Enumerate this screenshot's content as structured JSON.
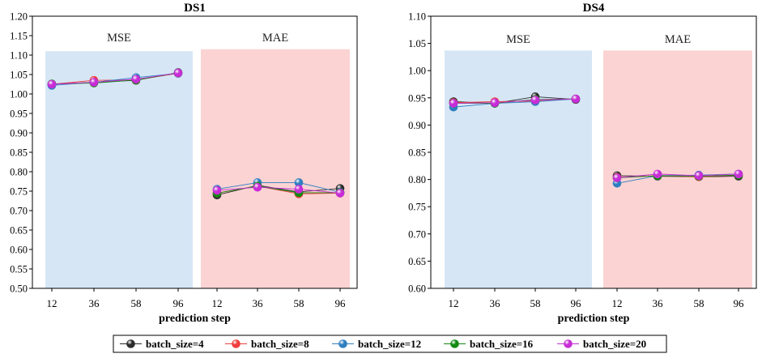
{
  "chart_data": [
    {
      "type": "line",
      "title": "DS1",
      "xlabel": "prediction step",
      "ylabel": "",
      "ylim": [
        0.5,
        1.2
      ],
      "yticks": [
        "0.50",
        "0.55",
        "0.60",
        "0.65",
        "0.70",
        "0.75",
        "0.80",
        "0.85",
        "0.90",
        "0.95",
        "1.00",
        "1.05",
        "1.10",
        "1.15",
        "1.20"
      ],
      "categories": [
        "12",
        "36",
        "58",
        "96"
      ],
      "groups": [
        {
          "label": "MSE",
          "color": "#d6e6f5",
          "top": 1.11,
          "series": [
            {
              "name": "batch_size=4",
              "values": [
                1.025,
                1.03,
                1.035,
                1.055
              ]
            },
            {
              "name": "batch_size=8",
              "values": [
                1.025,
                1.035,
                1.036,
                1.053
              ]
            },
            {
              "name": "batch_size=12",
              "values": [
                1.022,
                1.03,
                1.042,
                1.053
              ]
            },
            {
              "name": "batch_size=16",
              "values": [
                1.026,
                1.028,
                1.036,
                1.054
              ]
            },
            {
              "name": "batch_size=20",
              "values": [
                1.025,
                1.03,
                1.038,
                1.054
              ]
            }
          ]
        },
        {
          "label": "MAE",
          "color": "#fbd3d3",
          "top": 1.115,
          "series": [
            {
              "name": "batch_size=4",
              "values": [
                0.74,
                0.765,
                0.748,
                0.757
              ]
            },
            {
              "name": "batch_size=8",
              "values": [
                0.745,
                0.763,
                0.743,
                0.745
              ]
            },
            {
              "name": "batch_size=12",
              "values": [
                0.755,
                0.772,
                0.772,
                0.747
              ]
            },
            {
              "name": "batch_size=16",
              "values": [
                0.745,
                0.763,
                0.746,
                0.746
              ]
            },
            {
              "name": "batch_size=20",
              "values": [
                0.752,
                0.76,
                0.755,
                0.745
              ]
            }
          ]
        }
      ]
    },
    {
      "type": "line",
      "title": "DS4",
      "xlabel": "prediction step",
      "ylabel": "",
      "ylim": [
        0.6,
        1.1
      ],
      "yticks": [
        "0.60",
        "0.65",
        "0.70",
        "0.75",
        "0.80",
        "0.85",
        "0.90",
        "0.95",
        "1.00",
        "1.05",
        "1.10"
      ],
      "categories": [
        "12",
        "36",
        "58",
        "96"
      ],
      "groups": [
        {
          "label": "MSE",
          "color": "#d6e6f5",
          "top": 1.037,
          "series": [
            {
              "name": "batch_size=4",
              "values": [
                0.943,
                0.94,
                0.952,
                0.947
              ]
            },
            {
              "name": "batch_size=8",
              "values": [
                0.941,
                0.943,
                0.944,
                0.948
              ]
            },
            {
              "name": "batch_size=12",
              "values": [
                0.933,
                0.94,
                0.943,
                0.948
              ]
            },
            {
              "name": "batch_size=16",
              "values": [
                0.94,
                0.94,
                0.947,
                0.948
              ]
            },
            {
              "name": "batch_size=20",
              "values": [
                0.94,
                0.941,
                0.946,
                0.948
              ]
            }
          ]
        },
        {
          "label": "MAE",
          "color": "#fbd3d3",
          "top": 1.037,
          "series": [
            {
              "name": "batch_size=4",
              "values": [
                0.807,
                0.806,
                0.805,
                0.806
              ]
            },
            {
              "name": "batch_size=8",
              "values": [
                0.804,
                0.807,
                0.805,
                0.808
              ]
            },
            {
              "name": "batch_size=12",
              "values": [
                0.793,
                0.807,
                0.808,
                0.81
              ]
            },
            {
              "name": "batch_size=16",
              "values": [
                0.803,
                0.807,
                0.806,
                0.808
              ]
            },
            {
              "name": "batch_size=20",
              "values": [
                0.803,
                0.81,
                0.807,
                0.81
              ]
            }
          ]
        }
      ]
    }
  ],
  "legend": {
    "placement": "bottom-center",
    "items": [
      {
        "label": "batch_size=4",
        "color": "#2b2b2b"
      },
      {
        "label": "batch_size=8",
        "color": "#f03c3c"
      },
      {
        "label": "batch_size=12",
        "color": "#2f7fc0"
      },
      {
        "label": "batch_size=16",
        "color": "#118a11"
      },
      {
        "label": "batch_size=20",
        "color": "#c72dd6"
      }
    ]
  }
}
